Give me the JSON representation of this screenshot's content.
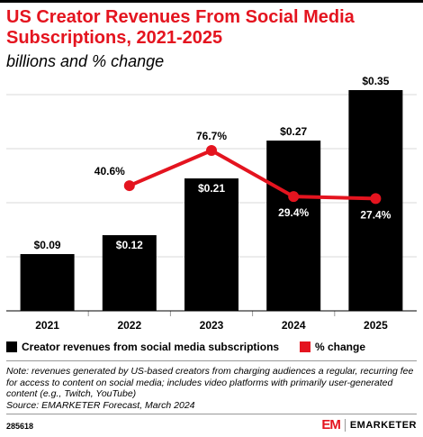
{
  "title": "US Creator Revenues From Social Media Subscriptions, 2021-2025",
  "subtitle": "billions and % change",
  "colors": {
    "bar": "#000000",
    "line": "#e4141f",
    "title": "#e4141f"
  },
  "chart_data": {
    "type": "bar",
    "categories": [
      "2021",
      "2022",
      "2023",
      "2024",
      "2025"
    ],
    "series": [
      {
        "name": "Creator revenues from social media subscriptions",
        "type": "bar",
        "values": [
          0.09,
          0.12,
          0.21,
          0.27,
          0.35
        ],
        "labels": [
          "$0.09",
          "$0.12",
          "$0.21",
          "$0.27",
          "$0.35"
        ]
      },
      {
        "name": "% change",
        "type": "line",
        "values": [
          null,
          40.6,
          76.7,
          29.4,
          27.4
        ],
        "labels": [
          "",
          "40.6%",
          "76.7%",
          "29.4%",
          "27.4%"
        ]
      }
    ],
    "ylim": [
      0,
      0.35
    ],
    "y2lim": [
      0,
      76.7
    ],
    "grid": true,
    "legend": "bottom"
  },
  "note": "Note: revenues generated by US-based creators from charging audiences a regular, recurring fee for access to content on social media; includes video platforms with primarily user-generated content (e.g., Twitch, YouTube)",
  "source": "Source: EMARKETER Forecast, March 2024",
  "chart_id": "285618",
  "brand": {
    "logo": "EM",
    "name": "EMARKETER"
  }
}
